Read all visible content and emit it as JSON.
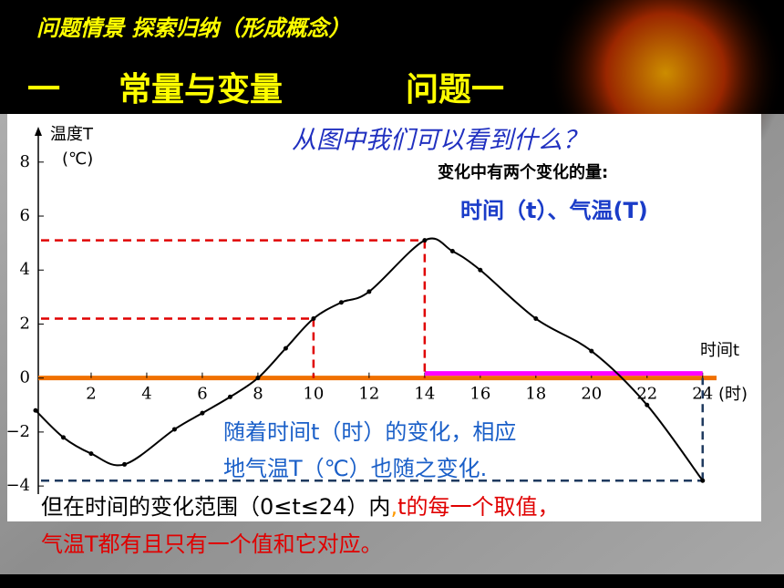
{
  "header": {
    "title": "问题情景 探索归纳（形成概念）",
    "section": "一",
    "heading": "常量与变量",
    "problem": "问题一"
  },
  "chart_data": {
    "type": "line",
    "x_label": "时间t",
    "x_unit": "(时)",
    "y_label": "温度T",
    "y_unit": "(℃)",
    "x": [
      0,
      1,
      2,
      3.2,
      5,
      6,
      7,
      8,
      9,
      10,
      11,
      12,
      14,
      15,
      16,
      18,
      20,
      22,
      24
    ],
    "values": [
      -1.2,
      -2.2,
      -2.8,
      -3.2,
      -1.9,
      -1.3,
      -0.7,
      0,
      1.1,
      2.2,
      2.8,
      3.2,
      5.1,
      4.7,
      4,
      2.2,
      1,
      -1,
      -3.8
    ],
    "color": "#000000",
    "xlim": [
      0,
      24.5
    ],
    "ylim": [
      -4.3,
      8.5
    ],
    "xticks": [
      2,
      4,
      6,
      8,
      10,
      12,
      14,
      16,
      18,
      20,
      22,
      24
    ],
    "yticks": [
      {
        "value": -4,
        "label": "−4"
      },
      {
        "value": -2,
        "label": "−2"
      },
      0,
      2,
      4,
      6,
      8
    ]
  },
  "annotations": {
    "question": "从图中我们可以看到什么？",
    "answer_intro": "变化中有两个变化的量:",
    "answer": "时间（t）、气温(T)",
    "observation": [
      "随着时间t（时）的变化，相应",
      "地气温T（℃）也随之变化."
    ],
    "conclusion": {
      "line1": [
        "但在时间的变化范围（0≤t≤24）内",
        ",",
        "t的每一个取值，"
      ],
      "line2": "气温T都有且只有一个值和它对应。"
    }
  }
}
